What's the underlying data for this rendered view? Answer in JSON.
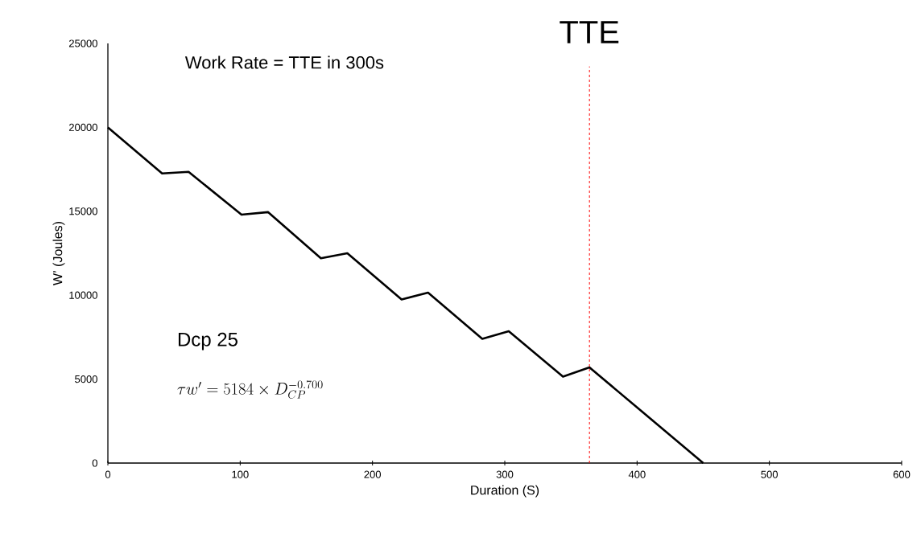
{
  "chart_data": {
    "type": "line",
    "xlabel": "Duration (S)",
    "ylabel": "W’ (Joules)",
    "x": [
      0,
      41,
      61,
      101,
      121,
      161,
      181,
      222,
      242,
      283,
      303,
      344,
      364,
      450
    ],
    "series": [
      {
        "color": "#000000",
        "values": [
          20000,
          17250,
          17350,
          14800,
          14950,
          12200,
          12500,
          9750,
          10150,
          7400,
          7850,
          5150,
          5700,
          0
        ]
      }
    ],
    "xlim": [
      0,
      600
    ],
    "ylim": [
      0,
      25000
    ],
    "xticks": [
      0,
      100,
      200,
      300,
      400,
      500,
      600
    ],
    "yticks": [
      0,
      5000,
      10000,
      15000,
      20000,
      25000
    ],
    "grid": false,
    "marker": "none",
    "line_style": "solid",
    "ref_lines": [
      {
        "axis": "x",
        "value": 364,
        "label": "TTE",
        "color": "#ff0000",
        "line_style": "dashed"
      }
    ],
    "annotations": [
      "Work Rate = TTE in 300s",
      "Dcp 25",
      "\\tau w' = 5184 \\times D_{CP}^{-0.700}"
    ]
  }
}
